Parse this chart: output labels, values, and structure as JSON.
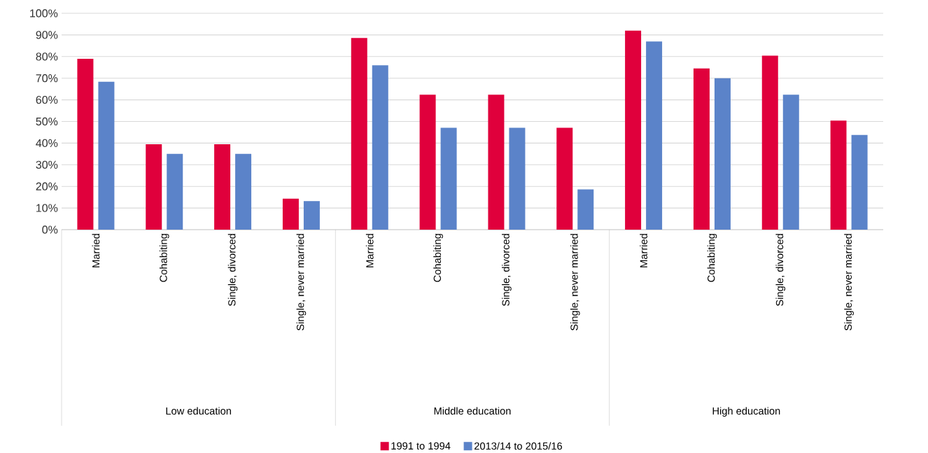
{
  "chart_data": {
    "type": "bar",
    "categories": [
      "Married",
      "Cohabiting",
      "Single, divorced",
      "Single, never married",
      "Married",
      "Cohabiting",
      "Single, divorced",
      "Single, never married",
      "Married",
      "Cohabiting",
      "Single, divorced",
      "Single, never married"
    ],
    "series": [
      {
        "name": "1991 to 1994",
        "color": "#e0003c",
        "values": [
          79,
          39.5,
          39.5,
          14.3,
          88.6,
          62.4,
          62.4,
          47.1,
          92,
          74.5,
          80.4,
          50.4
        ]
      },
      {
        "name": "2013/14 to 2015/16",
        "color": "#5b83c9",
        "values": [
          68.4,
          35,
          35,
          13.2,
          76,
          47.1,
          47.1,
          18.6,
          87,
          70,
          62.4,
          43.8
        ]
      }
    ],
    "ylim": [
      0,
      100
    ],
    "yticks": [
      {
        "value": 0,
        "label": "0%"
      },
      {
        "value": 10,
        "label": "10%"
      },
      {
        "value": 20,
        "label": "20%"
      },
      {
        "value": 30,
        "label": "30%"
      },
      {
        "value": 40,
        "label": "40%"
      },
      {
        "value": 50,
        "label": "50%"
      },
      {
        "value": 60,
        "label": "60%"
      },
      {
        "value": 70,
        "label": "70%"
      },
      {
        "value": 80,
        "label": "80%"
      },
      {
        "value": 90,
        "label": "90%"
      },
      {
        "value": 100,
        "label": "100%"
      }
    ],
    "annotations": [
      "Low education",
      "Middle education",
      "High education"
    ],
    "grid": "y",
    "legend": "bottom"
  }
}
